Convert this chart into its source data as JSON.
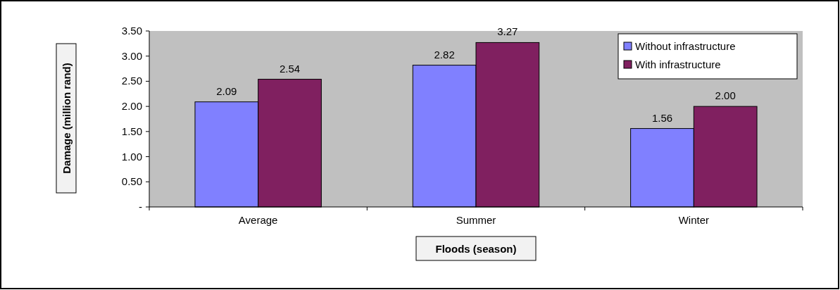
{
  "chart_data": {
    "type": "bar",
    "xlabel": "Floods (season)",
    "ylabel": "Damage (million rand)",
    "categories": [
      "Average",
      "Summer",
      "Winter"
    ],
    "series": [
      {
        "name": "Without infrastructure",
        "color": "#8080ff",
        "values": [
          2.09,
          2.82,
          1.56
        ]
      },
      {
        "name": "With infrastructure",
        "color": "#802060",
        "values": [
          2.54,
          3.27,
          2.0
        ]
      }
    ],
    "value_labels": [
      [
        "2.09",
        "2.82",
        "1.56"
      ],
      [
        "2.54",
        "3.27",
        "2.00"
      ]
    ],
    "ylim": [
      0,
      3.5
    ],
    "yticks": [
      {
        "value": 0,
        "label": "-"
      },
      {
        "value": 0.5,
        "label": "0.50"
      },
      {
        "value": 1,
        "label": "1.00"
      },
      {
        "value": 1.5,
        "label": "1.50"
      },
      {
        "value": 2,
        "label": "2.00"
      },
      {
        "value": 2.5,
        "label": "2.50"
      },
      {
        "value": 3,
        "label": "3.00"
      },
      {
        "value": 3.5,
        "label": "3.50"
      }
    ],
    "grid": false,
    "legend": "top right"
  }
}
